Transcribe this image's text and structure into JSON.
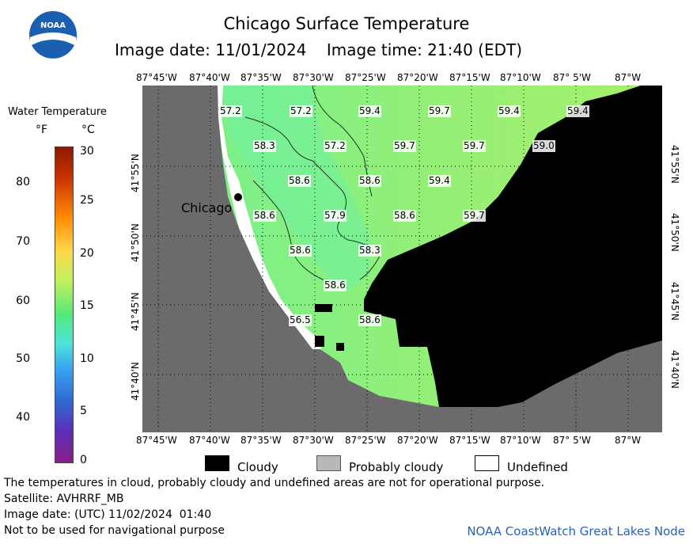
{
  "header": {
    "title": "Chicago Surface Temperature",
    "image_date_label": "Image date: 11/01/2024",
    "image_time_label": "Image time: 21:40 (EDT)",
    "logo_text": "NOAA"
  },
  "colorbar": {
    "title": "Water Temperature",
    "unit_f": "°F",
    "unit_c": "°C",
    "f_ticks": [
      "80",
      "70",
      "60",
      "50",
      "40"
    ],
    "c_ticks": [
      "30",
      "25",
      "20",
      "15",
      "10",
      "5",
      "0"
    ]
  },
  "map": {
    "lon_labels": [
      "87°45'W",
      "87°40'W",
      "87°35'W",
      "87°30'W",
      "87°25'W",
      "87°20'W",
      "87°15'W",
      "87°10'W",
      "87° 5'W",
      "87°W"
    ],
    "lat_labels": [
      "41°55'N",
      "41°50'N",
      "41°45'N",
      "41°40'N"
    ],
    "city_label": "Chicago",
    "temperature_labels": [
      "57.2",
      "57.2",
      "59.4",
      "59.7",
      "59.4",
      "59.4",
      "58.3",
      "57.2",
      "59.7",
      "59.7",
      "59.0",
      "58.6",
      "58.6",
      "59.4",
      "58.6",
      "57.9",
      "58.6",
      "59.7",
      "58.6",
      "58.3",
      "58.6",
      "56.5",
      "58.6"
    ],
    "colors": {
      "land": "#6b6b6b",
      "cloud": "#000000",
      "water_cool": "#6ff08a",
      "water_warm": "#a6f06c",
      "undefined": "#ffffff"
    }
  },
  "key": {
    "cloudy": "Cloudy",
    "probably_cloudy": "Probably cloudy",
    "undefined": "Undefined"
  },
  "footer": {
    "disclaimer": "The temperatures in cloud, probably cloudy and undefined areas are not for operational purpose.",
    "satellite": "Satellite: AVHRRF_MB",
    "utc_date": "Image date: (UTC) 11/02/2024  01:40",
    "nav_warning": "Not to be used for navigational purpose",
    "credit": "NOAA CoastWatch Great Lakes Node"
  }
}
